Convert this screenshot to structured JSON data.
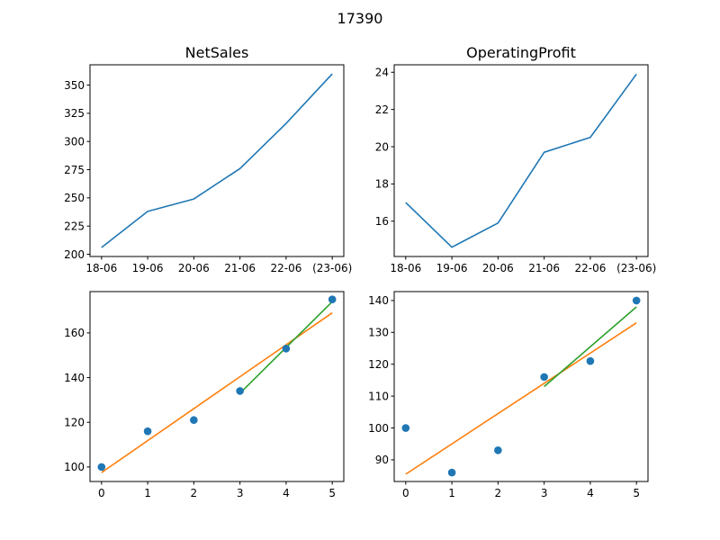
{
  "figure": {
    "suptitle": "17390"
  },
  "colors": {
    "blue": "#1f77b4",
    "orange": "#ff7f0e",
    "green": "#2ca02c"
  },
  "chart_data": [
    {
      "type": "line",
      "title": "NetSales",
      "categories": [
        "18-06",
        "19-06",
        "20-06",
        "21-06",
        "22-06",
        "(23-06)"
      ],
      "series": [
        {
          "values": [
            206,
            238,
            249,
            276,
            316,
            360
          ],
          "color": "#1f77b4"
        }
      ],
      "yticks": [
        200,
        225,
        250,
        275,
        300,
        325,
        350
      ],
      "ylim": [
        198,
        368
      ]
    },
    {
      "type": "line",
      "title": "OperatingProfit",
      "categories": [
        "18-06",
        "19-06",
        "20-06",
        "21-06",
        "22-06",
        "(23-06)"
      ],
      "series": [
        {
          "values": [
            17.0,
            14.6,
            15.9,
            19.7,
            20.5,
            23.9
          ],
          "color": "#1f77b4"
        }
      ],
      "yticks": [
        16,
        18,
        20,
        22,
        24
      ],
      "ylim": [
        14.1,
        24.4
      ]
    },
    {
      "type": "scatter",
      "title": "",
      "x": [
        0,
        1,
        2,
        3,
        4,
        5
      ],
      "points": [
        100,
        116,
        121,
        134,
        153,
        175
      ],
      "lines": [
        {
          "x": [
            0,
            5
          ],
          "y": [
            97.5,
            169
          ],
          "color": "#ff7f0e"
        },
        {
          "x": [
            3,
            5
          ],
          "y": [
            133,
            174
          ],
          "color": "#2ca02c"
        }
      ],
      "xticks": [
        0,
        1,
        2,
        3,
        4,
        5
      ],
      "yticks": [
        100,
        120,
        140,
        160
      ],
      "xlim": [
        -0.25,
        5.25
      ],
      "ylim": [
        93.5,
        178.5
      ]
    },
    {
      "type": "scatter",
      "title": "",
      "x": [
        0,
        1,
        2,
        3,
        4,
        5
      ],
      "points": [
        100,
        86,
        93,
        116,
        121,
        140
      ],
      "lines": [
        {
          "x": [
            0,
            5
          ],
          "y": [
            85.5,
            133
          ],
          "color": "#ff7f0e"
        },
        {
          "x": [
            3,
            5
          ],
          "y": [
            113,
            138
          ],
          "color": "#2ca02c"
        }
      ],
      "xticks": [
        0,
        1,
        2,
        3,
        4,
        5
      ],
      "yticks": [
        90,
        100,
        110,
        120,
        130,
        140
      ],
      "xlim": [
        -0.25,
        5.25
      ],
      "ylim": [
        83.2,
        142.8
      ]
    }
  ]
}
